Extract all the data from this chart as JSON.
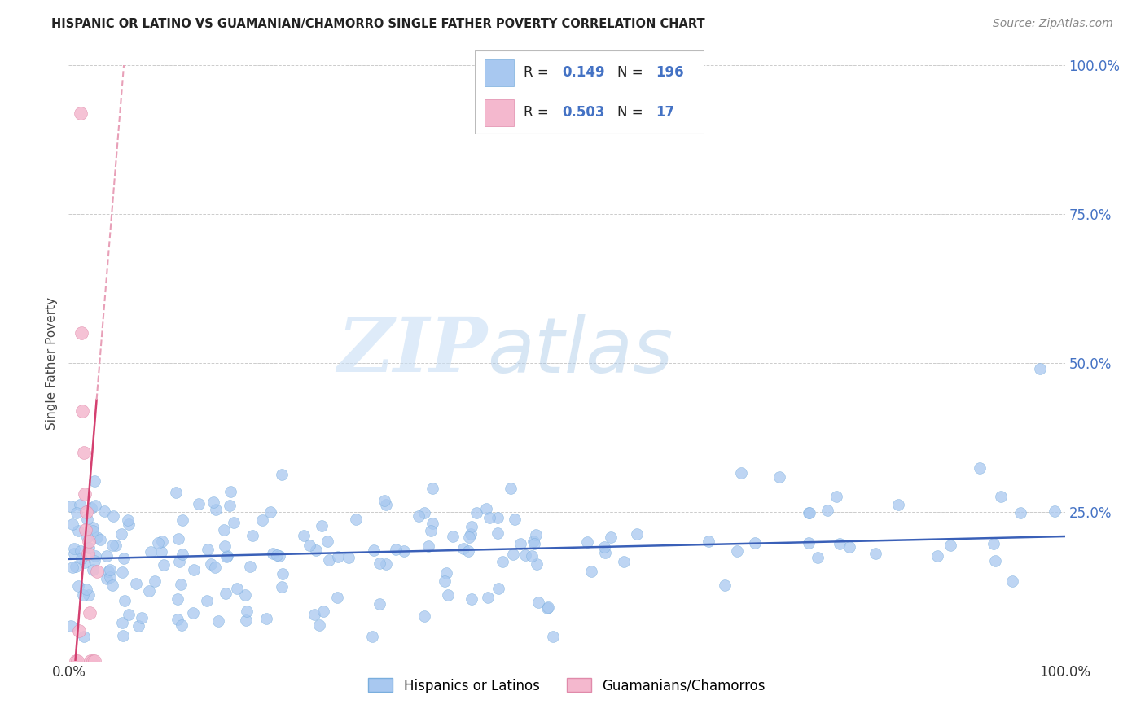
{
  "title": "HISPANIC OR LATINO VS GUAMANIAN/CHAMORRO SINGLE FATHER POVERTY CORRELATION CHART",
  "source": "Source: ZipAtlas.com",
  "ylabel": "Single Father Poverty",
  "r_blue": 0.149,
  "n_blue": 196,
  "r_pink": 0.503,
  "n_pink": 17,
  "blue_color": "#a8c8f0",
  "blue_edge_color": "#7aaedd",
  "pink_color": "#f4b8ce",
  "pink_edge_color": "#e08aaa",
  "blue_line_color": "#3a60b8",
  "pink_line_color": "#d44070",
  "pink_dashed_color": "#e8a0b8",
  "watermark_zip_color": "#c8dff5",
  "watermark_atlas_color": "#a8c8e8",
  "xlim": [
    0.0,
    1.0
  ],
  "ylim": [
    0.0,
    1.0
  ],
  "legend_label_blue": "Hispanics or Latinos",
  "legend_label_pink": "Guamanians/Chamorros",
  "legend_r_color": "#4472c4",
  "legend_n_color": "#4472c4"
}
